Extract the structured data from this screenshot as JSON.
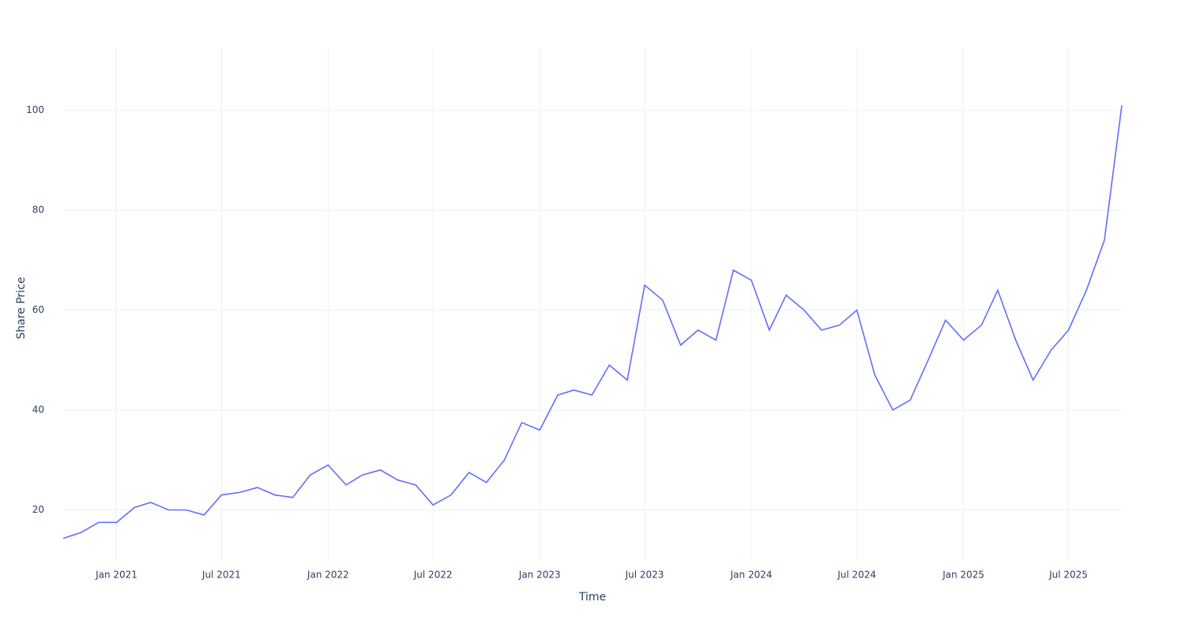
{
  "chart_data": {
    "type": "line",
    "x_label": "Time",
    "y_label": "Share Price",
    "x": [
      "2020-10",
      "2020-11",
      "2020-12",
      "2021-01",
      "2021-02",
      "2021-03",
      "2021-04",
      "2021-05",
      "2021-06",
      "2021-07",
      "2021-08",
      "2021-09",
      "2021-10",
      "2021-11",
      "2021-12",
      "2022-01",
      "2022-02",
      "2022-03",
      "2022-04",
      "2022-05",
      "2022-06",
      "2022-07",
      "2022-08",
      "2022-09",
      "2022-10",
      "2022-11",
      "2022-12",
      "2023-01",
      "2023-02",
      "2023-03",
      "2023-04",
      "2023-05",
      "2023-06",
      "2023-07",
      "2023-08",
      "2023-09",
      "2023-10",
      "2023-11",
      "2023-12",
      "2024-01",
      "2024-02",
      "2024-03",
      "2024-04",
      "2024-05",
      "2024-06",
      "2024-07",
      "2024-08",
      "2024-09",
      "2024-10",
      "2024-11",
      "2024-12",
      "2025-01",
      "2025-02",
      "2025-03",
      "2025-04",
      "2025-05",
      "2025-06",
      "2025-07",
      "2025-08",
      "2025-09",
      "2025-10"
    ],
    "values": [
      14.3,
      15.5,
      17.5,
      17.5,
      20.5,
      21.5,
      20,
      20,
      19,
      23,
      23.5,
      24.5,
      23,
      22.5,
      27,
      29,
      25,
      27,
      28,
      26,
      25,
      21,
      23,
      27.5,
      25.5,
      30,
      37.5,
      36,
      43,
      44,
      43,
      49,
      46,
      65,
      62,
      53,
      56,
      54,
      68,
      66,
      56,
      63,
      60,
      56,
      57,
      60,
      47,
      40,
      42,
      50,
      58,
      54,
      57,
      64,
      54,
      46,
      52,
      56,
      64,
      74,
      101
    ],
    "color": "#636efa",
    "xlim": [
      "2020-10",
      "2025-10"
    ],
    "xticks": [
      {
        "value": "2021-01",
        "label": "Jan 2021"
      },
      {
        "value": "2021-07",
        "label": "Jul 2021"
      },
      {
        "value": "2022-01",
        "label": "Jan 2022"
      },
      {
        "value": "2022-07",
        "label": "Jul 2022"
      },
      {
        "value": "2023-01",
        "label": "Jan 2023"
      },
      {
        "value": "2023-07",
        "label": "Jul 2023"
      },
      {
        "value": "2024-01",
        "label": "Jan 2024"
      },
      {
        "value": "2024-07",
        "label": "Jul 2024"
      },
      {
        "value": "2025-01",
        "label": "Jan 2025"
      },
      {
        "value": "2025-07",
        "label": "Jul 2025"
      }
    ],
    "ylim": [
      9.8,
      112.6
    ],
    "yticks": [
      20,
      40,
      60,
      80,
      100
    ],
    "grid": true
  }
}
